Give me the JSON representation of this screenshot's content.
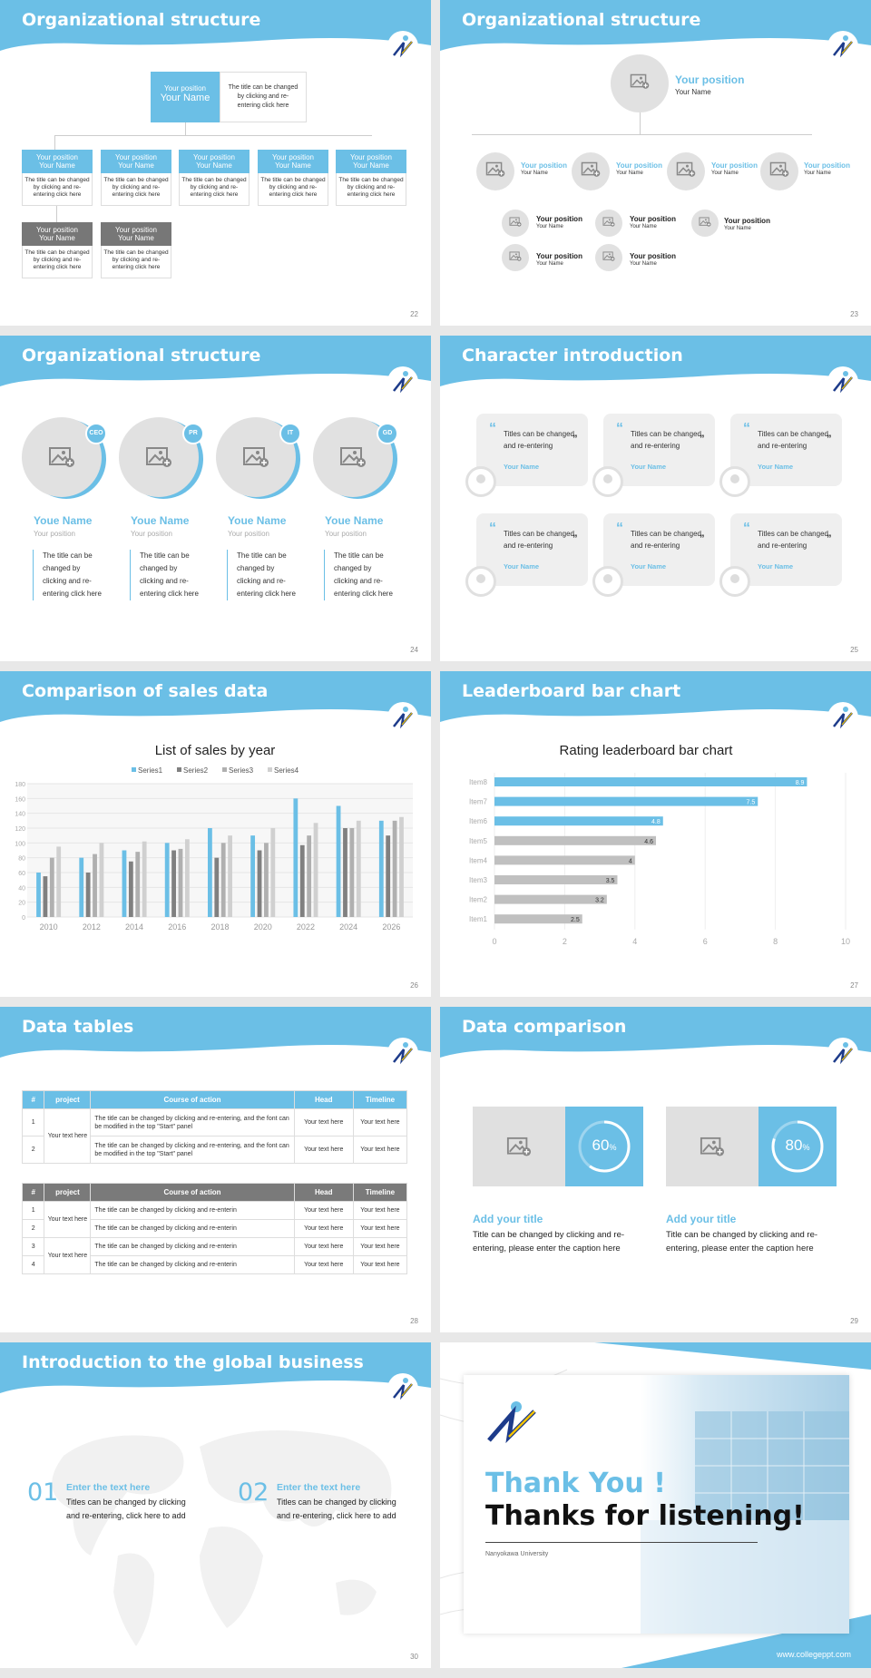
{
  "slides": {
    "s22": {
      "title": "Organizational structure",
      "num": "22",
      "top_position": "Your position",
      "top_name": "Your Name",
      "top_desc": "The title can be changed by clicking and re-entering click here",
      "box_position": "Your position",
      "box_name": "Your Name",
      "box_desc": "The title can be changed by clicking and re-entering click here"
    },
    "s23": {
      "title": "Organizational structure",
      "num": "23",
      "position": "Your position",
      "name": "Your Name"
    },
    "s24": {
      "title": "Organizational structure",
      "num": "24",
      "people": [
        {
          "badge": "CEO",
          "name": "Youe Name",
          "position": "Your position",
          "desc": "The title can be changed by clicking and re-entering click here"
        },
        {
          "badge": "PR",
          "name": "Youe Name",
          "position": "Your position",
          "desc": "The title can be changed by clicking and re-entering click here"
        },
        {
          "badge": "IT",
          "name": "Youe Name",
          "position": "Your position",
          "desc": "The title can be changed by clicking and re-entering click here"
        },
        {
          "badge": "GD",
          "name": "Youe Name",
          "position": "Your position",
          "desc": "The title can be changed by clicking and re-entering click here"
        }
      ]
    },
    "s25": {
      "title": "Character introduction",
      "num": "25",
      "quote": "Titles can be changed and re-entering",
      "name": "Your Name"
    },
    "s26": {
      "title": "Comparison of sales data",
      "num": "26"
    },
    "s27": {
      "title": "Leaderboard bar chart",
      "num": "27"
    },
    "s28": {
      "title": "Data tables",
      "num": "28",
      "headers": [
        "#",
        "project",
        "Course of action",
        "Head",
        "Timeline"
      ],
      "t1_rows": [
        {
          "n": "1",
          "action": "The title can be changed by clicking and re-entering, and the font can be modified in the top \"Start\" panel",
          "head": "Your text here",
          "time": "Your text here"
        },
        {
          "n": "2",
          "action": "The title can be changed by clicking and re-entering, and the font can be modified in the top \"Start\" panel",
          "head": "Your text here",
          "time": "Your text here"
        }
      ],
      "project_cell": "Your text here",
      "t2_rows": [
        {
          "n": "1",
          "action": "The title can be changed by clicking and re-enterin",
          "head": "Your text here",
          "time": "Your text here"
        },
        {
          "n": "2",
          "action": "The title can be changed by clicking and re-enterin",
          "head": "Your text here",
          "time": "Your text here"
        },
        {
          "n": "3",
          "action": "The title can be changed by clicking and re-enterin",
          "head": "Your text here",
          "time": "Your text here"
        },
        {
          "n": "4",
          "action": "The title can be changed by clicking and re-enterin",
          "head": "Your text here",
          "time": "Your text here"
        }
      ]
    },
    "s29": {
      "title": "Data comparison",
      "num": "29",
      "items": [
        {
          "pct": "60",
          "head": "Add your title",
          "desc": "Title can be changed by clicking and re-entering, please enter the caption here"
        },
        {
          "pct": "80",
          "head": "Add your title",
          "desc": "Title can be changed by clicking and re-entering, please enter the caption here"
        }
      ],
      "pct_sign": "%"
    },
    "s30": {
      "title": "Introduction to the global business",
      "num": "30",
      "items": [
        {
          "n": "01",
          "head": "Enter the text here",
          "desc": "Titles can be changed by clicking and re-entering, click here to add"
        },
        {
          "n": "02",
          "head": "Enter the text here",
          "desc": "Titles can be changed by clicking and re-entering, click here to add"
        }
      ]
    },
    "s31": {
      "thank": "Thank You !",
      "thanks": "Thanks for listening!",
      "university": "Nanyokawa University",
      "url": "www.collegeppt.com"
    }
  },
  "chart_data": [
    {
      "type": "bar",
      "title": "List of sales by year",
      "categories": [
        "2010",
        "2012",
        "2014",
        "2016",
        "2018",
        "2020",
        "2022",
        "2024",
        "2026"
      ],
      "series": [
        {
          "name": "Series1",
          "color": "#6bbfe6",
          "values": [
            60,
            80,
            90,
            100,
            120,
            110,
            160,
            150,
            130
          ]
        },
        {
          "name": "Series2",
          "color": "#808080",
          "values": [
            55,
            60,
            75,
            90,
            80,
            90,
            97,
            120,
            110
          ]
        },
        {
          "name": "Series3",
          "color": "#b0b0b0",
          "values": [
            80,
            85,
            88,
            92,
            100,
            100,
            110,
            120,
            130
          ]
        },
        {
          "name": "Series4",
          "color": "#d0d0d0",
          "values": [
            95,
            100,
            102,
            105,
            110,
            120,
            127,
            130,
            135
          ]
        }
      ],
      "ylim": [
        0,
        180
      ],
      "yticks": [
        "0",
        "20",
        "40",
        "60",
        "80",
        "100",
        "120",
        "140",
        "160",
        "180"
      ],
      "legend": "top"
    },
    {
      "type": "bar",
      "orientation": "horizontal",
      "title": "Rating leaderboard bar chart",
      "categories": [
        "Item8",
        "Item7",
        "Item6",
        "Item5",
        "Item4",
        "Item3",
        "Item2",
        "Item1"
      ],
      "values": [
        8.9,
        7.5,
        4.8,
        4.6,
        4,
        3.5,
        3.2,
        2.5
      ],
      "labels": [
        "8.9",
        "7.5",
        "4.8",
        "4.6",
        "4",
        "3.5",
        "3.2",
        "2.5"
      ],
      "xlim": [
        0,
        10
      ],
      "xticks": [
        "0",
        "2",
        "4",
        "6",
        "8",
        "10"
      ]
    }
  ]
}
